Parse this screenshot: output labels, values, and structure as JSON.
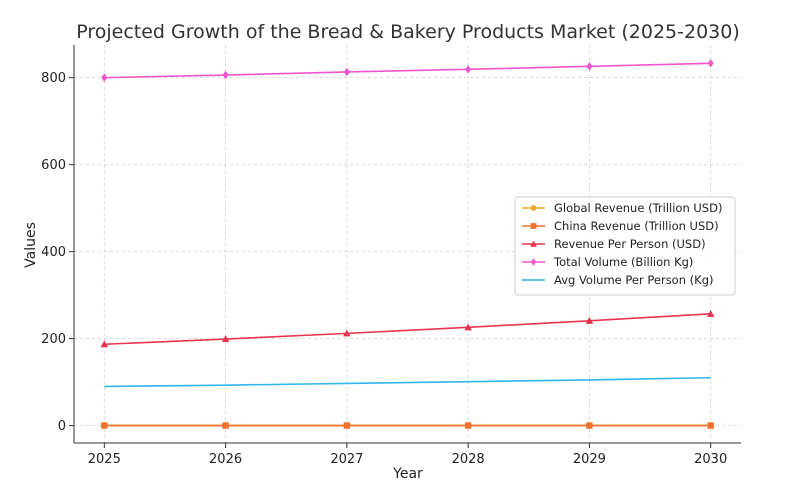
{
  "chart_data": {
    "type": "line",
    "title": "Projected Growth of the Bread & Bakery Products Market (2025-2030)",
    "xlabel": "Year",
    "ylabel": "Values",
    "x": [
      2025,
      2026,
      2027,
      2028,
      2029,
      2030
    ],
    "x_ticks": [
      "2025",
      "2026",
      "2027",
      "2028",
      "2029",
      "2030"
    ],
    "y_ticks": [
      "0",
      "200",
      "400",
      "600",
      "800"
    ],
    "xlim": [
      2024.75,
      2030.25
    ],
    "ylim": [
      -40,
      875
    ],
    "grid": true,
    "legend_position": "right",
    "series": [
      {
        "name": "Global Revenue (Trillion USD)",
        "values": [
          0.5,
          0.52,
          0.54,
          0.56,
          0.58,
          0.6
        ],
        "color": "#f5a623",
        "marker": "circle"
      },
      {
        "name": "China Revenue (Trillion USD)",
        "values": [
          0.05,
          0.055,
          0.06,
          0.065,
          0.07,
          0.075
        ],
        "color": "#f07030",
        "marker": "square"
      },
      {
        "name": "Revenue Per Person (USD)",
        "values": [
          187,
          199,
          212,
          226,
          241,
          257
        ],
        "color": "#e8344e",
        "marker": "triangle"
      },
      {
        "name": "Total Volume (Billion Kg)",
        "values": [
          800,
          806,
          813,
          819,
          826,
          833
        ],
        "color": "#ee55cc",
        "marker": "diamond"
      },
      {
        "name": "Avg Volume Per Person (Kg)",
        "values": [
          90,
          93,
          97,
          101,
          105,
          110
        ],
        "color": "#33b5ee",
        "marker": "none"
      }
    ]
  }
}
